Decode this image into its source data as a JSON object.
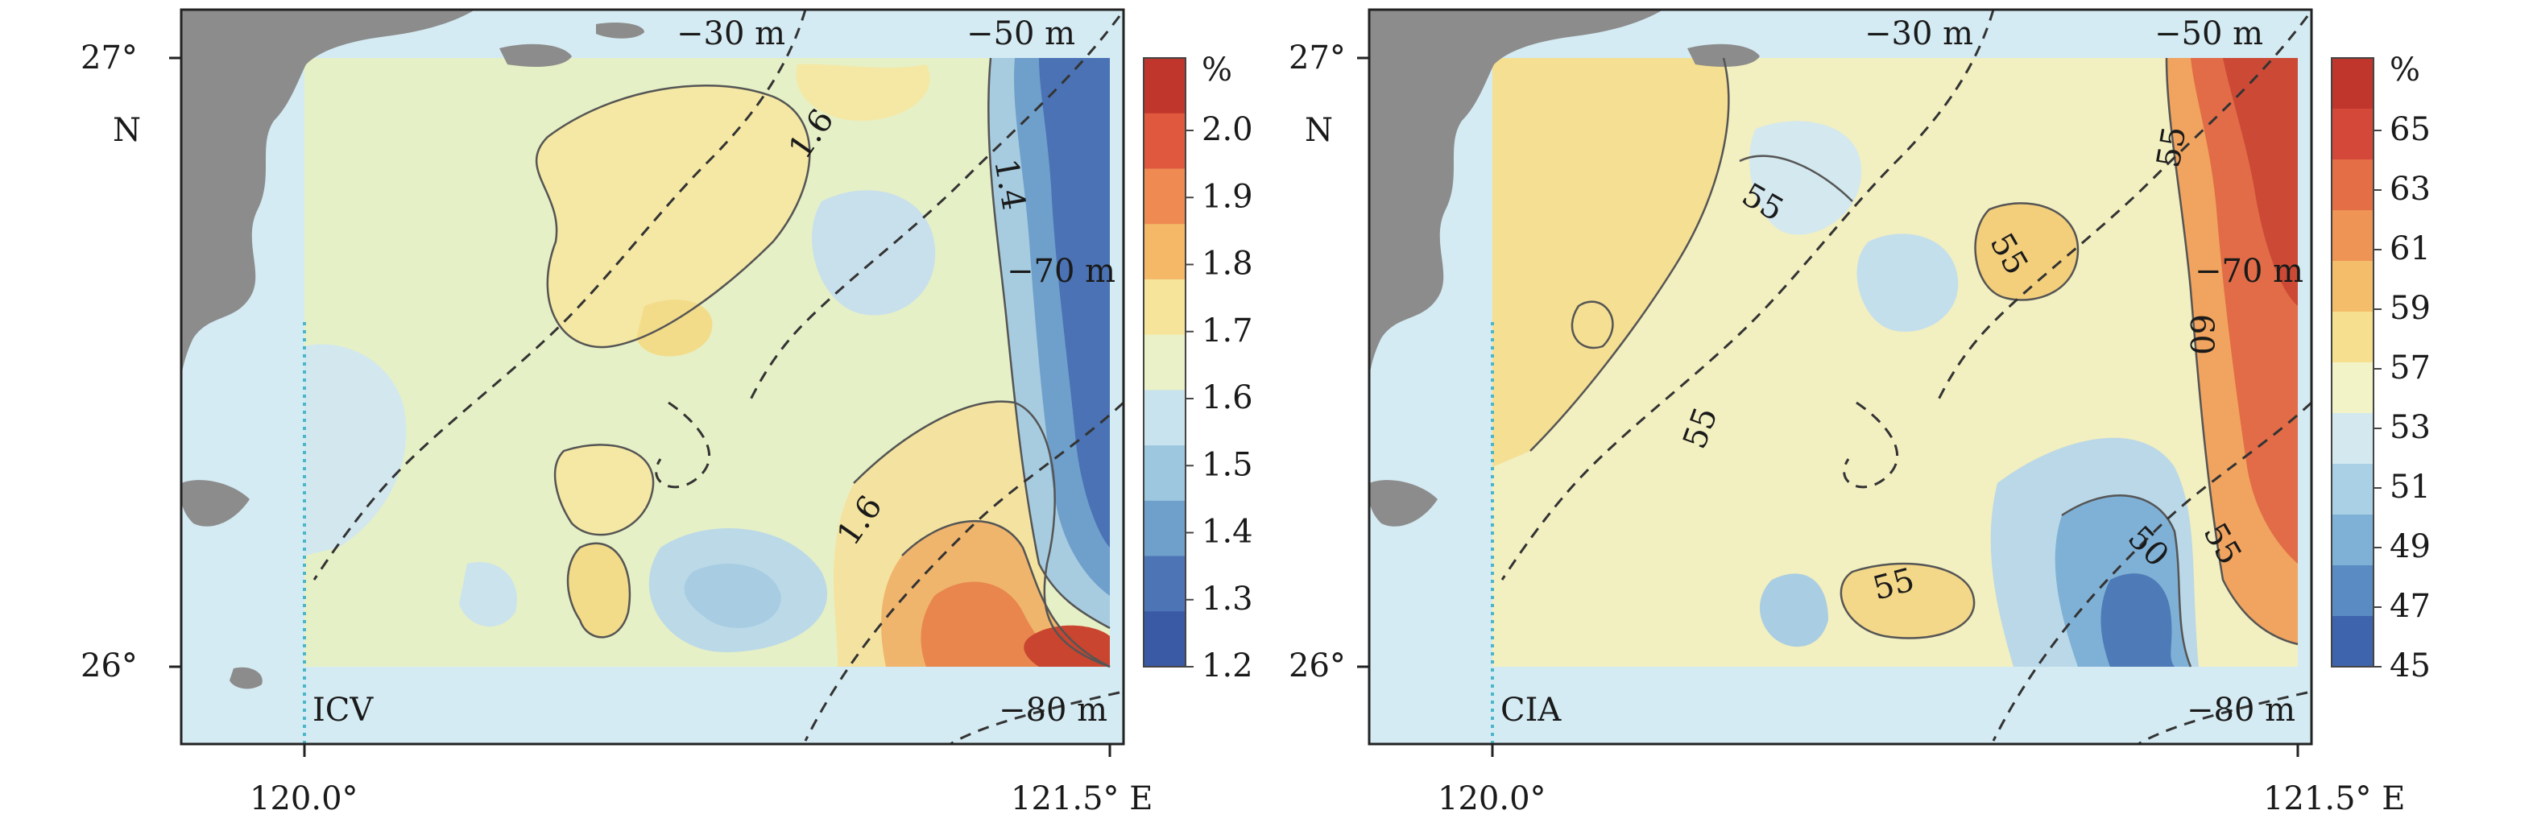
{
  "panels": [
    {
      "id": "icv",
      "label": "ICV",
      "unit": "%",
      "colorbar": [
        "2.0",
        "1.9",
        "1.8",
        "1.7",
        "1.6",
        "1.5",
        "1.4",
        "1.3",
        "1.2"
      ],
      "colors": [
        "#c0362c",
        "#e0593f",
        "#ee8a52",
        "#f4b867",
        "#f6e49a",
        "#eaf1c8",
        "#c9e3ee",
        "#9cc7de",
        "#6f9fcb",
        "#4d75b6",
        "#3a5aa6"
      ],
      "contour_labels": [
        "1.6",
        "1.4",
        "1.6"
      ],
      "depths": [
        "−30 m",
        "−50 m",
        "−70 m",
        "−80 m"
      ]
    },
    {
      "id": "cia",
      "label": "CIA",
      "unit": "%",
      "colorbar": [
        "65",
        "63",
        "61",
        "59",
        "57",
        "53",
        "51",
        "49",
        "47",
        "45"
      ],
      "colors": [
        "#c0362c",
        "#d4483a",
        "#e46e46",
        "#ee9455",
        "#f4bd6a",
        "#f6df8e",
        "#f2f4c8",
        "#d3e8ef",
        "#a9d0e5",
        "#7fb1d6",
        "#5a8cc3",
        "#3e64ad"
      ],
      "contour_labels": [
        "55",
        "55",
        "55",
        "55",
        "60",
        "50",
        "55",
        "55"
      ],
      "depths": [
        "−30 m",
        "−50 m",
        "−70 m",
        "−80 m"
      ]
    }
  ],
  "axes": {
    "lat_top": "27°",
    "lat_bottom": "26°",
    "lat_unit": "N",
    "lon_left": "120.0°",
    "lon_right": "121.5° E"
  },
  "colors": {
    "land": "#8c8c8c",
    "sea": "#cfe8f1",
    "frame": "#222222"
  }
}
